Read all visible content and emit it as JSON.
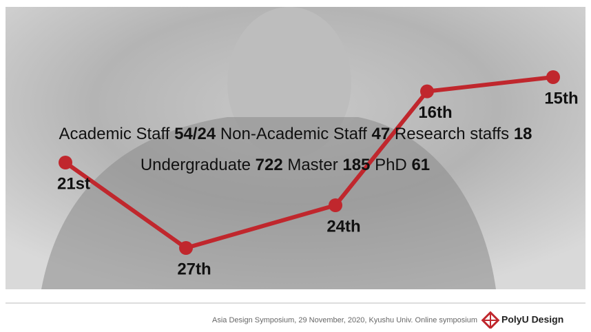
{
  "chart_data": {
    "type": "line",
    "categories": [
      null,
      null,
      null,
      null,
      null
    ],
    "values": [
      21,
      27,
      24,
      16,
      15
    ],
    "value_labels": [
      "21st",
      "27th",
      "24th",
      "16th",
      "15th"
    ],
    "color": "#c0272d"
  },
  "overlay": {
    "line1": [
      "Academic Staff ",
      "54/24",
      " Non-Academic Staff ",
      "47",
      " Research staffs ",
      "18"
    ],
    "line2": [
      "Undergraduate ",
      "722",
      " Master ",
      "185",
      " PhD ",
      "61"
    ]
  },
  "footer": {
    "text": "Asia Design Symposium, 29 November, 2020, Kyushu Univ. Online symposium",
    "logo": "PolyU Design"
  }
}
